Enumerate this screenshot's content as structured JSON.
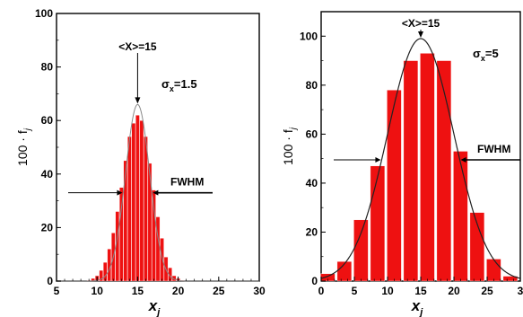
{
  "chart_data": [
    {
      "type": "bar",
      "x": [
        9,
        9.5,
        10,
        10.5,
        11,
        11.5,
        12,
        12.5,
        13,
        13.5,
        14,
        14.5,
        15,
        15.5,
        16,
        16.5,
        17,
        17.5,
        18,
        18.5,
        19,
        19.5,
        20,
        20.5,
        21
      ],
      "values": [
        0.3,
        1,
        2,
        4,
        7,
        12,
        18,
        26,
        35,
        45,
        54,
        59,
        62,
        60,
        54,
        44,
        34,
        24,
        16,
        9,
        5,
        2,
        1,
        0.3,
        0.1
      ],
      "curve_peak": 66,
      "curve_center": 15,
      "curve_sigma": 1.5,
      "xlabel": "x",
      "xlabel_sub": "j",
      "ylabel": "100 · f",
      "ylabel_sub": "j",
      "xlim": [
        5,
        30
      ],
      "ylim": [
        0,
        100
      ],
      "xticks": [
        "5",
        "10",
        "15",
        "20",
        "25",
        "30"
      ],
      "yticks": [
        "0",
        "20",
        "40",
        "60",
        "80",
        "100"
      ],
      "mean_label": "<X>=15",
      "sigma_label": "σ",
      "sigma_sub": "x",
      "sigma_value": "=1.5",
      "fwhm_label": "FWHM",
      "bar_color": "#ee1111",
      "curve_color": "#888888",
      "grid": false
    },
    {
      "type": "bar",
      "x": [
        1,
        3.5,
        6,
        8.5,
        11,
        13.5,
        16,
        18.5,
        21,
        23.5,
        26,
        28.5
      ],
      "values": [
        3,
        8,
        25,
        47,
        78,
        90,
        93,
        90,
        53,
        28,
        9,
        2
      ],
      "curve_peak": 99,
      "curve_center": 15,
      "curve_sigma": 5,
      "xlabel": "x",
      "xlabel_sub": "j",
      "ylabel": "100 · f",
      "ylabel_sub": "j",
      "xlim": [
        0,
        30
      ],
      "ylim": [
        0,
        110
      ],
      "xticks": [
        "0",
        "5",
        "10",
        "15",
        "20",
        "25",
        "3"
      ],
      "yticks": [
        "0",
        "20",
        "40",
        "60",
        "80",
        "100"
      ],
      "mean_label": "<X>=15",
      "sigma_label": "σ",
      "sigma_sub": "x",
      "sigma_value": "=5",
      "fwhm_label": "FWHM",
      "bar_color": "#ee1111",
      "curve_color": "#222222",
      "grid": false
    }
  ]
}
